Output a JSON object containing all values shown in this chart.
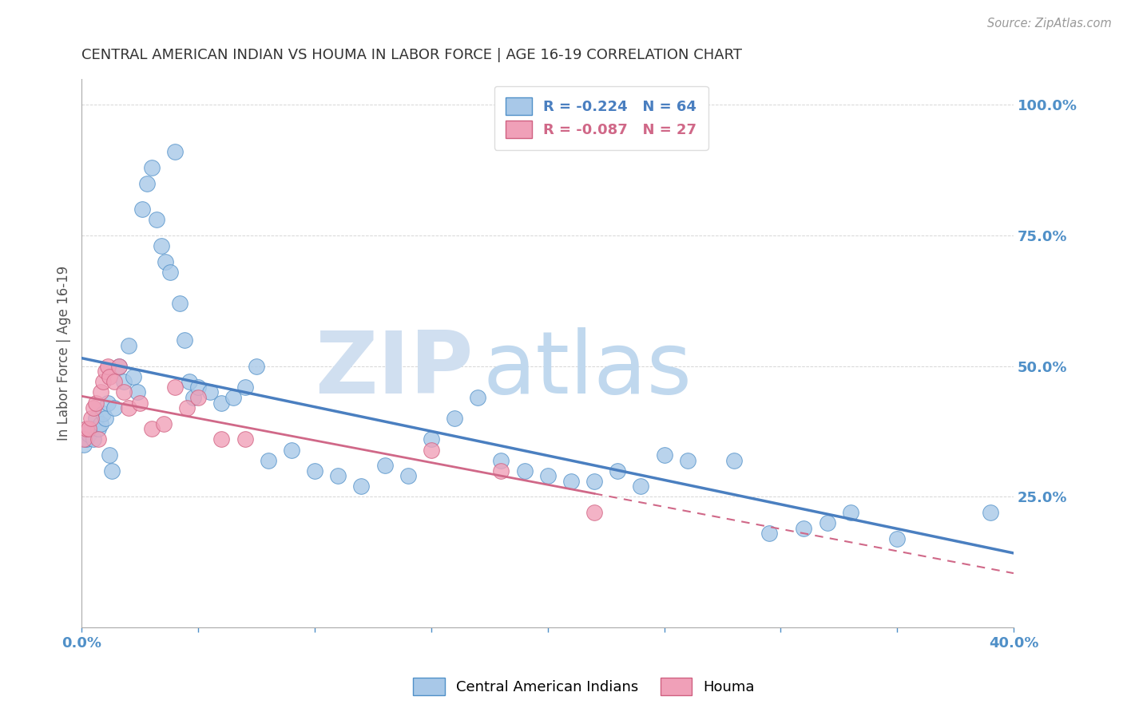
{
  "title": "CENTRAL AMERICAN INDIAN VS HOUMA IN LABOR FORCE | AGE 16-19 CORRELATION CHART",
  "source_text": "Source: ZipAtlas.com",
  "ylabel": "In Labor Force | Age 16-19",
  "xlim": [
    0.0,
    0.4
  ],
  "ylim": [
    0.0,
    1.05
  ],
  "blue_color": "#a8c8e8",
  "pink_color": "#f0a0b8",
  "blue_edge_color": "#5090c8",
  "pink_edge_color": "#d06080",
  "blue_line_color": "#4a7fc0",
  "pink_line_color": "#d06888",
  "grid_color": "#cccccc",
  "title_color": "#333333",
  "axis_color": "#aaaaaa",
  "tick_color": "#5090c8",
  "watermark_zip_color": "#d0dff0",
  "watermark_atlas_color": "#c0d8ee",
  "blue_x": [
    0.001,
    0.002,
    0.003,
    0.004,
    0.005,
    0.006,
    0.007,
    0.008,
    0.009,
    0.01,
    0.011,
    0.012,
    0.013,
    0.014,
    0.016,
    0.018,
    0.02,
    0.022,
    0.024,
    0.026,
    0.028,
    0.03,
    0.032,
    0.034,
    0.036,
    0.038,
    0.04,
    0.042,
    0.044,
    0.046,
    0.048,
    0.05,
    0.055,
    0.06,
    0.065,
    0.07,
    0.075,
    0.08,
    0.09,
    0.1,
    0.11,
    0.12,
    0.13,
    0.14,
    0.15,
    0.16,
    0.17,
    0.18,
    0.19,
    0.2,
    0.21,
    0.22,
    0.23,
    0.24,
    0.25,
    0.26,
    0.28,
    0.295,
    0.31,
    0.32,
    0.33,
    0.35,
    0.39
  ],
  "blue_y": [
    0.35,
    0.36,
    0.37,
    0.38,
    0.36,
    0.4,
    0.38,
    0.39,
    0.41,
    0.4,
    0.43,
    0.33,
    0.3,
    0.42,
    0.5,
    0.47,
    0.54,
    0.48,
    0.45,
    0.8,
    0.85,
    0.88,
    0.78,
    0.73,
    0.7,
    0.68,
    0.91,
    0.62,
    0.55,
    0.47,
    0.44,
    0.46,
    0.45,
    0.43,
    0.44,
    0.46,
    0.5,
    0.32,
    0.34,
    0.3,
    0.29,
    0.27,
    0.31,
    0.29,
    0.36,
    0.4,
    0.44,
    0.32,
    0.3,
    0.29,
    0.28,
    0.28,
    0.3,
    0.27,
    0.33,
    0.32,
    0.32,
    0.18,
    0.19,
    0.2,
    0.22,
    0.17,
    0.22
  ],
  "pink_x": [
    0.001,
    0.002,
    0.003,
    0.004,
    0.005,
    0.006,
    0.007,
    0.008,
    0.009,
    0.01,
    0.011,
    0.012,
    0.014,
    0.016,
    0.018,
    0.02,
    0.025,
    0.03,
    0.035,
    0.04,
    0.045,
    0.05,
    0.06,
    0.07,
    0.15,
    0.18,
    0.22
  ],
  "pink_y": [
    0.36,
    0.38,
    0.38,
    0.4,
    0.42,
    0.43,
    0.36,
    0.45,
    0.47,
    0.49,
    0.5,
    0.48,
    0.47,
    0.5,
    0.45,
    0.42,
    0.43,
    0.38,
    0.39,
    0.46,
    0.42,
    0.44,
    0.36,
    0.36,
    0.34,
    0.3,
    0.22
  ]
}
